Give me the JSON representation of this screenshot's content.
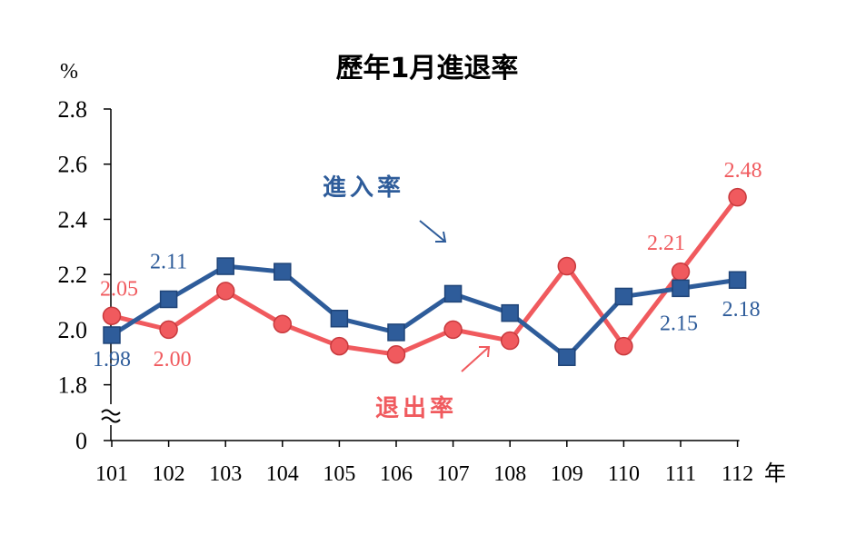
{
  "chart_data": {
    "type": "line",
    "title": "歷年1月進退率",
    "y_unit": "%",
    "x_unit": "年",
    "categories": [
      "101",
      "102",
      "103",
      "104",
      "105",
      "106",
      "107",
      "108",
      "109",
      "110",
      "111",
      "112"
    ],
    "y_ticks": [
      "2.8",
      "2.6",
      "2.4",
      "2.2",
      "2.0",
      "1.8",
      "0"
    ],
    "y_axis_break": true,
    "ylim": [
      1.8,
      2.8
    ],
    "series": [
      {
        "name": "進入率",
        "color": "#2e5c9a",
        "marker": "square",
        "values": [
          1.98,
          2.11,
          2.23,
          2.21,
          2.04,
          1.99,
          2.13,
          2.06,
          1.9,
          2.12,
          2.15,
          2.18
        ]
      },
      {
        "name": "退出率",
        "color": "#f05a5e",
        "marker": "circle",
        "values": [
          2.05,
          2.0,
          2.14,
          2.02,
          1.94,
          1.91,
          2.0,
          1.96,
          2.23,
          1.94,
          2.21,
          2.48
        ]
      }
    ],
    "data_labels": [
      {
        "series": 0,
        "index": 0,
        "text": "1.98",
        "pos": "below"
      },
      {
        "series": 0,
        "index": 1,
        "text": "2.11",
        "pos": "above"
      },
      {
        "series": 0,
        "index": 10,
        "text": "2.15",
        "pos": "below"
      },
      {
        "series": 0,
        "index": 11,
        "text": "2.18",
        "pos": "below"
      },
      {
        "series": 1,
        "index": 0,
        "text": "2.05",
        "pos": "above"
      },
      {
        "series": 1,
        "index": 1,
        "text": "2.00",
        "pos": "below"
      },
      {
        "series": 1,
        "index": 10,
        "text": "2.21",
        "pos": "above"
      },
      {
        "series": 1,
        "index": 11,
        "text": "2.48",
        "pos": "above"
      }
    ],
    "legend": "inline annotations with arrows",
    "grid": false
  }
}
